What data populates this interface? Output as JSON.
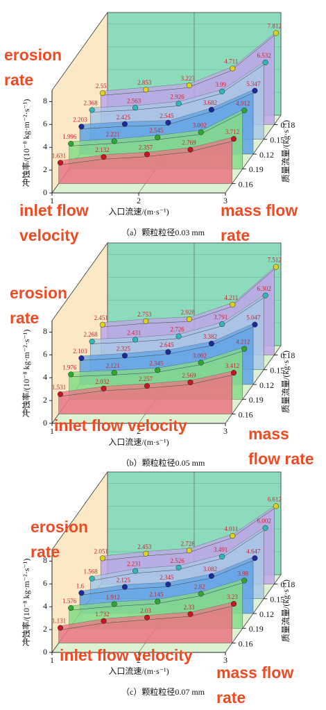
{
  "chart_data": [
    {
      "type": "area3d",
      "caption": "（a）颗粒粒径0.03 mm",
      "xlabel": "入口流速/(m·s⁻¹)",
      "ylabel": "冲蚀率/(10⁻⁸ kg·m⁻²·s⁻¹)",
      "zlabel": "质量流量/(kg·s⁻¹)",
      "x": [
        1,
        1.5,
        2,
        2.5,
        3
      ],
      "xlim": [
        1,
        3
      ],
      "xticks": [
        1,
        2,
        3
      ],
      "ylim": [
        0,
        9
      ],
      "yticks": [
        0,
        2,
        4,
        6,
        8
      ],
      "grid": true,
      "series": [
        {
          "name": "0.16",
          "color": "#ec7584",
          "marker_color": "#c8161e",
          "values": [
            1.631,
            2.132,
            2.357,
            2.769,
            3.712
          ]
        },
        {
          "name": "0.19",
          "color": "#86dc86",
          "marker_color": "#2ea82e",
          "values": [
            1.996,
            2.221,
            2.545,
            3.002,
            4.912
          ]
        },
        {
          "name": "0.12",
          "color": "#5fa3e6",
          "marker_color": "#1c2a9a",
          "values": [
            2.203,
            2.425,
            2.545,
            3.682,
            5.347
          ]
        },
        {
          "name": "0.15",
          "color": "#a8c8e8",
          "marker_color": "#2fb8b8",
          "values": [
            2.368,
            2.563,
            2.926,
            3.99,
            6.532
          ]
        },
        {
          "name": "0.18",
          "color": "#c0a6ea",
          "marker_color": "#e0d21c",
          "values": [
            2.55,
            2.853,
            3.223,
            4.711,
            7.812
          ]
        }
      ],
      "annotations": [
        "erosion rate",
        "inlet flow velocity",
        "mass flow rate"
      ]
    },
    {
      "type": "area3d",
      "caption": "（b）颗粒粒径0.05 mm",
      "xlabel": "入口流速/(m·s⁻¹)",
      "ylabel": "冲蚀率/(10⁻⁸ kg·m⁻²·s⁻¹)",
      "zlabel": "质量流量/(kg·s⁻¹)",
      "x": [
        1,
        1.5,
        2,
        2.5,
        3
      ],
      "xlim": [
        1,
        3
      ],
      "xticks": [
        1,
        2,
        3
      ],
      "ylim": [
        0,
        9
      ],
      "yticks": [
        0,
        2,
        4,
        6,
        8
      ],
      "grid": true,
      "series": [
        {
          "name": "0.16",
          "color": "#ec7584",
          "marker_color": "#c8161e",
          "values": [
            1.531,
            2.032,
            2.257,
            2.569,
            3.412
          ]
        },
        {
          "name": "0.19",
          "color": "#86dc86",
          "marker_color": "#2ea82e",
          "values": [
            1.976,
            2.121,
            2.345,
            3.002,
            4.212
          ]
        },
        {
          "name": "0.12",
          "color": "#5fa3e6",
          "marker_color": "#1c2a9a",
          "values": [
            2.103,
            2.325,
            2.645,
            3.382,
            5.047
          ]
        },
        {
          "name": "0.15",
          "color": "#a8c8e8",
          "marker_color": "#2fb8b8",
          "values": [
            2.268,
            2.431,
            2.726,
            3.791,
            6.302
          ]
        },
        {
          "name": "0.18",
          "color": "#c0a6ea",
          "marker_color": "#e0d21c",
          "values": [
            2.451,
            2.753,
            2.928,
            4.211,
            7.512
          ]
        }
      ],
      "annotations": [
        "erosion rate",
        "inlet flow velocity",
        "mass flow rate"
      ]
    },
    {
      "type": "area3d",
      "caption": "（c）颗粒粒径0.07 mm",
      "xlabel": "入口流速/(m·s⁻¹)",
      "ylabel": "冲蚀率/(10⁻⁸ kg·m⁻²·s⁻¹)",
      "zlabel": "质量流量/(kg·s⁻¹)",
      "x": [
        1,
        1.5,
        2,
        2.5,
        3
      ],
      "xlim": [
        1,
        3
      ],
      "xticks": [
        1,
        2,
        3
      ],
      "ylim": [
        0,
        9
      ],
      "yticks": [
        0,
        2,
        4,
        6,
        8
      ],
      "grid": true,
      "series": [
        {
          "name": "0.16",
          "color": "#ec7584",
          "marker_color": "#c8161e",
          "values": [
            1.131,
            1.732,
            2.03,
            2.33,
            3.23
          ]
        },
        {
          "name": "0.19",
          "color": "#86dc86",
          "marker_color": "#2ea82e",
          "values": [
            1.576,
            1.912,
            2.145,
            2.82,
            3.98
          ]
        },
        {
          "name": "0.12",
          "color": "#5fa3e6",
          "marker_color": "#1c2a9a",
          "values": [
            1.6,
            2.125,
            2.345,
            3.082,
            4.647
          ]
        },
        {
          "name": "0.15",
          "color": "#a8c8e8",
          "marker_color": "#2fb8b8",
          "values": [
            1.568,
            2.231,
            2.526,
            3.491,
            6.002
          ]
        },
        {
          "name": "0.18",
          "color": "#c0a6ea",
          "marker_color": "#e0d21c",
          "values": [
            2.051,
            2.453,
            2.728,
            4.011,
            6.612
          ]
        }
      ],
      "annotations": [
        "erosion rate",
        "inlet flow velocity",
        "mass flow rate"
      ]
    }
  ]
}
